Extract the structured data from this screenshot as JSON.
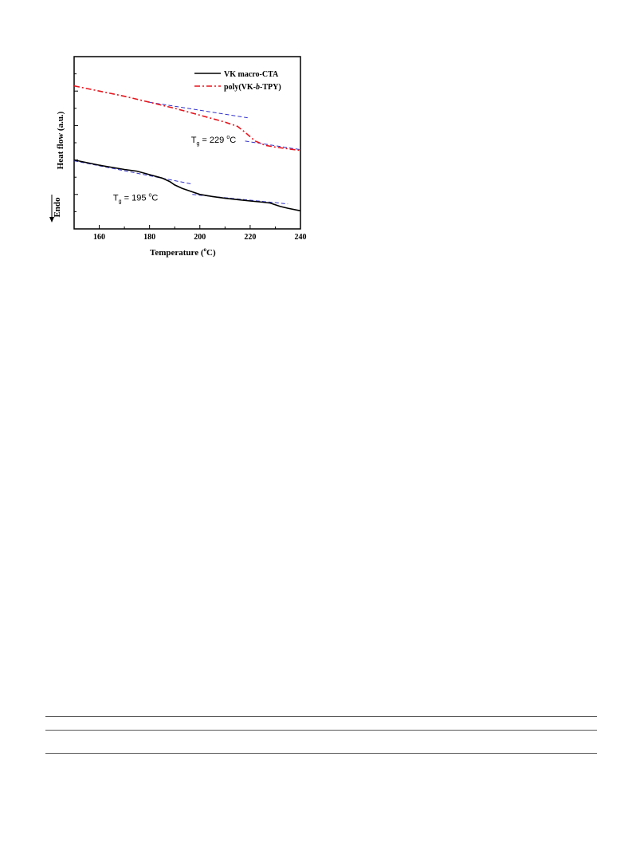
{
  "chart_data": {
    "type": "line",
    "xlabel_main": "Temperature (",
    "xlabel_sup": "o",
    "xlabel_tail": "C)",
    "ylabel": "Heat flow (a.u.)",
    "endo_label": "Endo",
    "xlim": [
      150,
      240
    ],
    "ylim": [
      0,
      10
    ],
    "x_ticks": [
      160,
      180,
      200,
      220,
      240
    ],
    "y_minor_ticks": [
      1,
      2,
      3,
      4,
      5,
      6,
      7,
      8,
      9
    ],
    "grid": false,
    "legend_position": "top-right",
    "colors": {
      "series1": "#000000",
      "series2": "#e8141c",
      "fit": "#3333cc"
    },
    "series": [
      {
        "name": "VK macro-CTA",
        "style": "solid",
        "x": [
          150,
          160,
          170,
          175,
          180,
          185,
          188,
          190,
          193,
          196,
          200,
          205,
          210,
          215,
          220,
          225,
          228,
          230,
          232,
          235,
          240
        ],
        "y": [
          4.0,
          3.7,
          3.45,
          3.35,
          3.15,
          2.95,
          2.75,
          2.55,
          2.35,
          2.2,
          2.0,
          1.88,
          1.78,
          1.7,
          1.62,
          1.55,
          1.5,
          1.4,
          1.3,
          1.2,
          1.05
        ]
      },
      {
        "name": "poly(VK-b-TPY)",
        "style": "dash-dot",
        "x": [
          150,
          160,
          170,
          180,
          190,
          200,
          210,
          215,
          218,
          222,
          226,
          230,
          235,
          240
        ],
        "y": [
          8.3,
          8.0,
          7.7,
          7.35,
          7.0,
          6.6,
          6.2,
          5.95,
          5.6,
          5.1,
          4.85,
          4.75,
          4.65,
          4.55
        ]
      }
    ],
    "legend_name_parts": [
      [
        "VK macro-CTA"
      ],
      [
        "poly(VK-",
        "b",
        "-TPY)"
      ]
    ],
    "tangent_lines": [
      {
        "x": [
          150,
          197
        ],
        "y": [
          3.95,
          2.6
        ]
      },
      {
        "x": [
          197,
          235
        ],
        "y": [
          2.0,
          1.45
        ]
      },
      {
        "x": [
          180,
          219
        ],
        "y": [
          7.35,
          6.45
        ]
      },
      {
        "x": [
          218,
          240
        ],
        "y": [
          5.1,
          4.6
        ]
      }
    ],
    "annotations": [
      {
        "sym": "T",
        "sub": "g",
        "val": " = 195 ",
        "sup": "o",
        "unit": "C",
        "at": [
          165.5,
          1.65
        ]
      },
      {
        "sym": "T",
        "sub": "g",
        "val": " = 229 ",
        "sup": "o",
        "unit": "C",
        "at": [
          196.5,
          5.0
        ]
      }
    ]
  }
}
